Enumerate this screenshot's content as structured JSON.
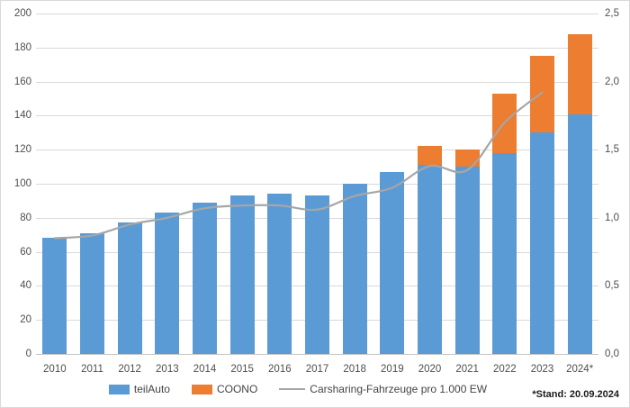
{
  "chart_data": {
    "type": "bar",
    "subtype": "stacked-bars-with-line",
    "categories": [
      "2010",
      "2011",
      "2012",
      "2013",
      "2014",
      "2015",
      "2016",
      "2017",
      "2018",
      "2019",
      "2020",
      "2021",
      "2022",
      "2023",
      "2024*"
    ],
    "series": [
      {
        "name": "teilAuto",
        "type": "bar",
        "color": "#5B9BD5",
        "values": [
          68,
          71,
          77,
          83,
          89,
          93,
          94,
          93,
          100,
          107,
          111,
          110,
          118,
          130,
          141
        ]
      },
      {
        "name": "COONO",
        "type": "bar",
        "color": "#ED7D31",
        "values": [
          0,
          0,
          0,
          0,
          0,
          0,
          0,
          0,
          0,
          0,
          11,
          10,
          35,
          45,
          47
        ]
      },
      {
        "name": "Carsharing-Fahrzeuge pro 1.000 EW",
        "type": "line",
        "color": "#A6A6A6",
        "axis": "right",
        "values": [
          0.85,
          0.87,
          0.95,
          1.0,
          1.07,
          1.09,
          1.09,
          1.06,
          1.16,
          1.22,
          1.38,
          1.35,
          1.7,
          1.92,
          null
        ]
      }
    ],
    "title": "",
    "xlabel": "",
    "ylabel": "",
    "left_axis": {
      "min": 0,
      "max": 200,
      "step": 20,
      "ticks": [
        "0",
        "20",
        "40",
        "60",
        "80",
        "100",
        "120",
        "140",
        "160",
        "180",
        "200"
      ]
    },
    "right_axis": {
      "min": 0,
      "max": 2.5,
      "step": 0.5,
      "ticks": [
        "0,0",
        "0,5",
        "1,0",
        "1,5",
        "2,0",
        "2,5"
      ]
    },
    "grid": true,
    "legend_position": "bottom",
    "gridline_color": "#D9D9D9"
  },
  "legend": {
    "item1": "teilAuto",
    "item2": "COONO",
    "item3": "Carsharing-Fahrzeuge pro 1.000 EW"
  },
  "footnote": {
    "text": "*Stand: 20.09.2024"
  }
}
